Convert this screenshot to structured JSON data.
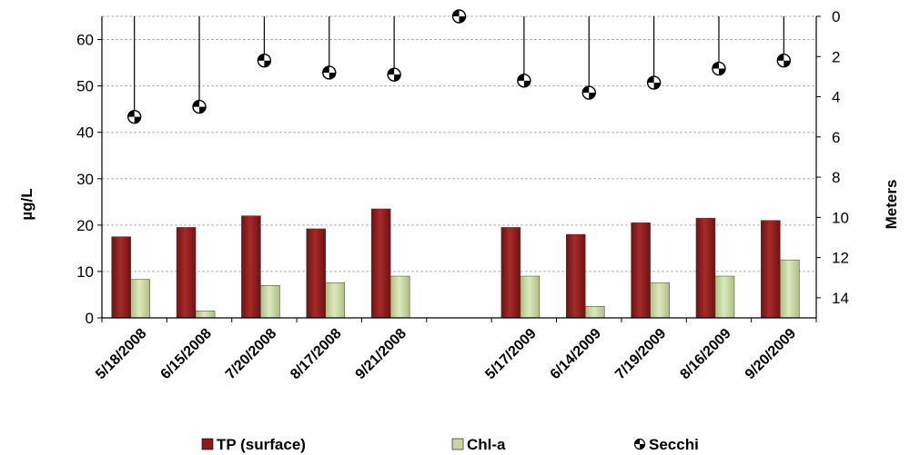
{
  "chart_data": {
    "type": "bar",
    "categories": [
      "5/18/2008",
      "6/15/2008",
      "7/20/2008",
      "8/17/2008",
      "9/21/2008",
      "",
      "5/17/2009",
      "6/14/2009",
      "7/19/2009",
      "8/16/2009",
      "9/20/2009"
    ],
    "series": [
      {
        "name": "TP (surface)",
        "type": "bar",
        "axis": "left",
        "color": "#8B1A1A",
        "values": [
          17.5,
          19.5,
          22.0,
          19.2,
          23.5,
          null,
          19.5,
          18.0,
          20.5,
          21.5,
          21.0
        ]
      },
      {
        "name": "Chl-a",
        "type": "bar",
        "axis": "left",
        "color": "#C8D7A0",
        "values": [
          8.3,
          1.5,
          7.0,
          7.6,
          9.0,
          null,
          9.0,
          2.5,
          7.6,
          9.0,
          12.5
        ]
      },
      {
        "name": "Secchi",
        "type": "drop-line-marker",
        "axis": "right",
        "color": "#000000",
        "values": [
          5.0,
          4.5,
          2.2,
          2.8,
          2.9,
          null,
          3.2,
          3.8,
          3.3,
          2.6,
          2.2
        ]
      }
    ],
    "ylabel": "µg/L",
    "ylim": [
      0,
      65
    ],
    "yticks": [
      0,
      10,
      20,
      30,
      40,
      50,
      60
    ],
    "y2label": "Meters",
    "y2lim": [
      0,
      15
    ],
    "y2ticks": [
      0,
      2,
      4,
      6,
      8,
      10,
      12,
      14
    ],
    "y2_inverted": true,
    "grid": true,
    "legend_position": "bottom"
  }
}
